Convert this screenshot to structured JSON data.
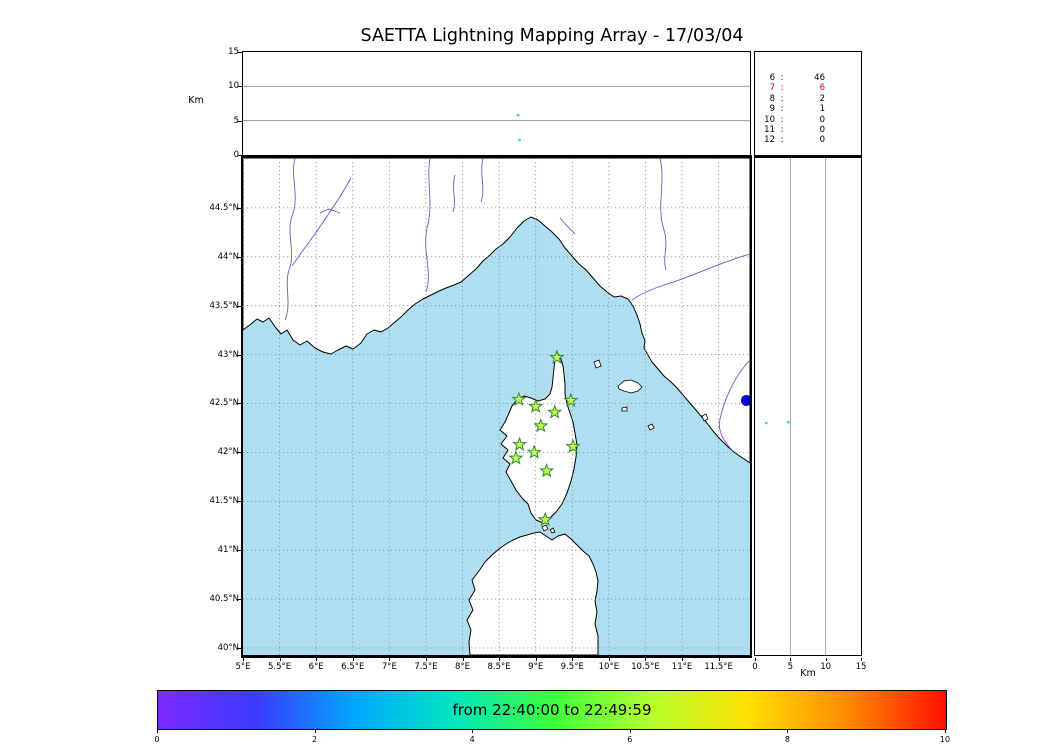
{
  "title": "SAETTA Lightning Mapping Array - 17/03/04",
  "alt_panel": {
    "ylabel": "Km",
    "ticks": [
      {
        "v": 0,
        "label": "0"
      },
      {
        "v": 5,
        "label": "5"
      },
      {
        "v": 10,
        "label": "10"
      },
      {
        "v": 15,
        "label": "15"
      }
    ]
  },
  "stats_panel": {
    "rows": [
      {
        "n": "6",
        "count": "46",
        "highlight": false
      },
      {
        "n": "7",
        "count": "6",
        "highlight": true
      },
      {
        "n": "8",
        "count": "2",
        "highlight": false
      },
      {
        "n": "9",
        "count": "1",
        "highlight": false
      },
      {
        "n": "10",
        "count": "0",
        "highlight": false
      },
      {
        "n": "11",
        "count": "0",
        "highlight": false
      },
      {
        "n": "12",
        "count": "0",
        "highlight": false
      }
    ]
  },
  "map_panel": {
    "lat_ticks": [
      {
        "v": 44.5,
        "label": "44.5°N"
      },
      {
        "v": 44,
        "label": "44°N"
      },
      {
        "v": 43.5,
        "label": "43.5°N"
      },
      {
        "v": 43,
        "label": "43°N"
      },
      {
        "v": 42.5,
        "label": "42.5°N"
      },
      {
        "v": 42,
        "label": "42°N"
      },
      {
        "v": 41.5,
        "label": "41.5°N"
      },
      {
        "v": 41,
        "label": "41°N"
      },
      {
        "v": 40.5,
        "label": "40.5°N"
      },
      {
        "v": 40,
        "label": "40°N"
      }
    ],
    "lon_ticks": [
      {
        "v": 5,
        "label": "5°E"
      },
      {
        "v": 5.5,
        "label": "5.5°E"
      },
      {
        "v": 6,
        "label": "6°E"
      },
      {
        "v": 6.5,
        "label": "6.5°E"
      },
      {
        "v": 7,
        "label": "7°E"
      },
      {
        "v": 7.5,
        "label": "7.5°E"
      },
      {
        "v": 8,
        "label": "8°E"
      },
      {
        "v": 8.5,
        "label": "8.5°E"
      },
      {
        "v": 9,
        "label": "9°E"
      },
      {
        "v": 9.5,
        "label": "9.5°E"
      },
      {
        "v": 10,
        "label": "10°E"
      },
      {
        "v": 10.5,
        "label": "10.5°E"
      },
      {
        "v": 11,
        "label": "11°E"
      },
      {
        "v": 11.5,
        "label": "11.5°E"
      }
    ]
  },
  "right_panel": {
    "xlabel": "Km",
    "ticks": [
      {
        "v": 0,
        "label": "0"
      },
      {
        "v": 5,
        "label": "5"
      },
      {
        "v": 10,
        "label": "10"
      },
      {
        "v": 15,
        "label": "15"
      }
    ]
  },
  "colorbar": {
    "label": "from 22:40:00 to 22:49:59",
    "ticks": [
      {
        "v": 0,
        "label": "0"
      },
      {
        "v": 2,
        "label": "2"
      },
      {
        "v": 4,
        "label": "4"
      },
      {
        "v": 6,
        "label": "6"
      },
      {
        "v": 8,
        "label": "8"
      },
      {
        "v": 10,
        "label": "10"
      }
    ],
    "gradient": [
      "#7d2aff",
      "#3a3aff",
      "#00a8ff",
      "#00e6c0",
      "#3cff3c",
      "#b4ff2e",
      "#ffe000",
      "#ff8a00",
      "#ff0f00"
    ]
  },
  "colors": {
    "sea": "#aedff0",
    "land": "#ffffff",
    "coast": "#000000",
    "river": "#6a5acd",
    "grid": "#8a8a8a",
    "station_fill": "#c6f85a",
    "station_edge": "#2e8b2e",
    "flash_point": "#0000cc",
    "source_dot": "#35dfae",
    "highlight": "#dd0000"
  },
  "chart_data": {
    "type": "scatter",
    "title": "SAETTA Lightning Mapping Array - 17/03/04",
    "time_window": {
      "start": "22:40:00",
      "end": "22:49:59"
    },
    "panels": [
      {
        "name": "altitude_vs_longitude",
        "ylabel": "Km",
        "ylim": [
          0,
          15
        ],
        "xlim_deg_e": [
          5,
          11.93
        ],
        "points": [
          {
            "lon": 8.76,
            "alt_km": 5.8
          },
          {
            "lon": 8.78,
            "alt_km": 2.2
          }
        ]
      },
      {
        "name": "stations_contributing_counts",
        "columns": [
          "n_stations",
          "count"
        ],
        "rows": [
          [
            6,
            46
          ],
          [
            7,
            6
          ],
          [
            8,
            2
          ],
          [
            9,
            1
          ],
          [
            10,
            0
          ],
          [
            11,
            0
          ],
          [
            12,
            0
          ]
        ],
        "highlighted_row": [
          7,
          6
        ]
      },
      {
        "name": "map",
        "lon_range": [
          5,
          11.93
        ],
        "lat_range": [
          39.93,
          45.01
        ],
        "lma_stations": [
          {
            "lon": 9.29,
            "lat": 42.97
          },
          {
            "lon": 8.77,
            "lat": 42.54
          },
          {
            "lon": 9.0,
            "lat": 42.47
          },
          {
            "lon": 9.26,
            "lat": 42.41
          },
          {
            "lon": 9.48,
            "lat": 42.53
          },
          {
            "lon": 9.07,
            "lat": 42.27
          },
          {
            "lon": 8.78,
            "lat": 42.08
          },
          {
            "lon": 9.51,
            "lat": 42.06
          },
          {
            "lon": 8.73,
            "lat": 41.94
          },
          {
            "lon": 8.98,
            "lat": 42.0
          },
          {
            "lon": 9.15,
            "lat": 41.81
          },
          {
            "lon": 9.13,
            "lat": 41.31
          }
        ],
        "located_point": {
          "lon": 11.88,
          "lat": 42.53
        }
      },
      {
        "name": "altitude_vs_latitude",
        "xlabel": "Km",
        "xlim": [
          0,
          15
        ],
        "points": [
          {
            "alt_km": 1.6,
            "lat": 42.3
          },
          {
            "alt_km": 4.7,
            "lat": 42.31
          }
        ]
      },
      {
        "name": "colorbar",
        "label": "from 22:40:00 to 22:49:59",
        "range": [
          0,
          10
        ],
        "ticks": [
          0,
          2,
          4,
          6,
          8,
          10
        ]
      }
    ]
  }
}
